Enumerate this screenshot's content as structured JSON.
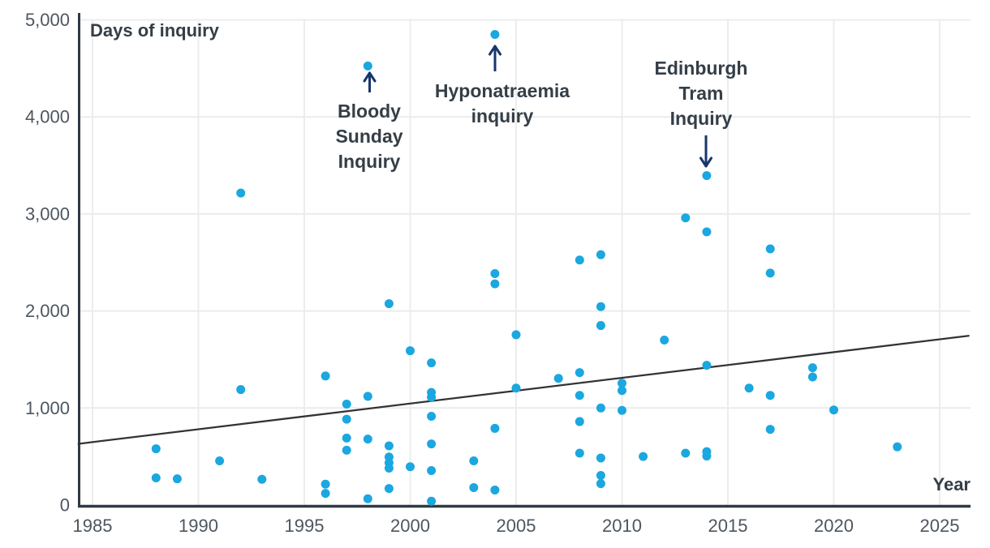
{
  "chart_data": {
    "type": "scatter",
    "title": "Days of inquiry",
    "xlabel": "Year",
    "ylabel": "Days of inquiry",
    "xlim": [
      1984.3,
      2026.4
    ],
    "ylim": [
      0,
      5000
    ],
    "grid": true,
    "x_ticks": [
      1985,
      1990,
      1995,
      2000,
      2005,
      2010,
      2015,
      2020,
      2025
    ],
    "y_ticks": [
      {
        "value": 0,
        "label": "0"
      },
      {
        "value": 1000,
        "label": "1,000"
      },
      {
        "value": 2000,
        "label": "2,000"
      },
      {
        "value": 3000,
        "label": "3,000"
      },
      {
        "value": 4000,
        "label": "4,000"
      },
      {
        "value": 5000,
        "label": "5,000"
      }
    ],
    "point_fields": [
      "year",
      "days"
    ],
    "points": [
      [
        1988,
        580
      ],
      [
        1988,
        280
      ],
      [
        1989,
        270
      ],
      [
        1991,
        455
      ],
      [
        1992,
        3215
      ],
      [
        1992,
        1190
      ],
      [
        1993,
        265
      ],
      [
        1996,
        1330
      ],
      [
        1996,
        215
      ],
      [
        1996,
        120
      ],
      [
        1997,
        1040
      ],
      [
        1997,
        885
      ],
      [
        1997,
        690
      ],
      [
        1997,
        565
      ],
      [
        1998,
        4525
      ],
      [
        1998,
        1120
      ],
      [
        1998,
        680
      ],
      [
        1998,
        65
      ],
      [
        1999,
        2075
      ],
      [
        1999,
        610
      ],
      [
        1999,
        495
      ],
      [
        1999,
        435
      ],
      [
        1999,
        380
      ],
      [
        1999,
        170
      ],
      [
        2000,
        1590
      ],
      [
        2000,
        395
      ],
      [
        2001,
        1465
      ],
      [
        2001,
        1160
      ],
      [
        2001,
        1110
      ],
      [
        2001,
        915
      ],
      [
        2001,
        630
      ],
      [
        2001,
        355
      ],
      [
        2001,
        40
      ],
      [
        2003,
        455
      ],
      [
        2003,
        180
      ],
      [
        2004,
        4850
      ],
      [
        2004,
        2385
      ],
      [
        2004,
        2280
      ],
      [
        2004,
        790
      ],
      [
        2004,
        155
      ],
      [
        2005,
        1755
      ],
      [
        2005,
        1205
      ],
      [
        2007,
        1305
      ],
      [
        2008,
        2525
      ],
      [
        2008,
        1365
      ],
      [
        2008,
        1130
      ],
      [
        2008,
        860
      ],
      [
        2008,
        535
      ],
      [
        2009,
        2580
      ],
      [
        2009,
        2045
      ],
      [
        2009,
        1850
      ],
      [
        2009,
        1000
      ],
      [
        2009,
        485
      ],
      [
        2009,
        305
      ],
      [
        2009,
        220
      ],
      [
        2010,
        1255
      ],
      [
        2010,
        1180
      ],
      [
        2010,
        975
      ],
      [
        2011,
        500
      ],
      [
        2012,
        1700
      ],
      [
        2013,
        2960
      ],
      [
        2013,
        535
      ],
      [
        2014,
        3395
      ],
      [
        2014,
        2815
      ],
      [
        2014,
        1440
      ],
      [
        2014,
        550
      ],
      [
        2014,
        505
      ],
      [
        2016,
        1205
      ],
      [
        2017,
        2640
      ],
      [
        2017,
        2390
      ],
      [
        2017,
        1130
      ],
      [
        2017,
        780
      ],
      [
        2019,
        1415
      ],
      [
        2019,
        1320
      ],
      [
        2020,
        980
      ],
      [
        2023,
        600
      ]
    ],
    "trend_line": {
      "start": {
        "year": 1984.3,
        "days": 630
      },
      "end": {
        "year": 2026.4,
        "days": 1745
      }
    },
    "annotations": [
      {
        "id": "bloody-sunday",
        "lines": [
          "Bloody",
          "Sunday",
          "Inquiry"
        ],
        "point": {
          "year": 1998,
          "days": 4525
        },
        "arrow_direction": "up"
      },
      {
        "id": "hyponatraemia",
        "lines": [
          "Hyponatraemia",
          "inquiry"
        ],
        "point": {
          "year": 2004,
          "days": 4850
        },
        "arrow_direction": "up"
      },
      {
        "id": "edinburgh-tram",
        "lines": [
          "Edinburgh",
          "Tram",
          "Inquiry"
        ],
        "point": {
          "year": 2014,
          "days": 3395
        },
        "arrow_direction": "down"
      }
    ],
    "colors": {
      "point": "#1ba7e0",
      "trend_line": "#333333",
      "axis": "#2f3a43",
      "gridline": "#ececec",
      "tick_text": "#4d565f",
      "title_text": "#343e47",
      "annotation_text": "#343e47",
      "arrow": "#17366b",
      "background": "#ffffff"
    },
    "legend": null
  }
}
